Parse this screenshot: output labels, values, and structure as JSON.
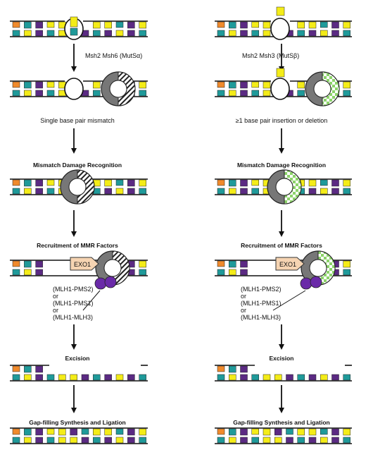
{
  "colors": {
    "teal": "#1f9a9a",
    "yellow": "#f4ec18",
    "purple": "#5b2a83",
    "orange": "#f08a2c",
    "strand": "#111111",
    "clamp_grey": "#777777",
    "exo_fill": "#f6d4b2",
    "mlh_purple": "#6a2aa8",
    "mutsb_green": "#8dd36b"
  },
  "left_column": {
    "protein_label": "Msh2 Msh6 (MutSα)",
    "lesion_label": "Single base pair mismatch",
    "step_recognition": "Mismatch Damage Recognition",
    "step_recruitment": "Recruitment of MMR Factors",
    "exo_label": "EXO1",
    "mlh_complexes": [
      "(MLH1-PMS2)",
      "or",
      "(MLH1-PMS1)",
      "or",
      "(MLH1-MLH3)"
    ],
    "step_excision": "Excision",
    "step_gapfill": "Gap-filling Synthesis and Ligation"
  },
  "right_column": {
    "protein_label": "Msh2 Msh3 (MutSβ)",
    "lesion_label": "≥1 base pair insertion or deletion",
    "step_recognition": "Mismatch Damage Recognition",
    "step_recruitment": "Recruitment of MMR Factors",
    "exo_label": "EXO1",
    "mlh_complexes": [
      "(MLH1-PMS2)",
      "or",
      "(MLH1-PMS1)",
      "or",
      "(MLH1-MLH3)"
    ],
    "step_excision": "Excision",
    "step_gapfill": "Gap-filling Synthesis and Ligation"
  },
  "clamp_pattern": {
    "left": "diagonal-stripes",
    "right": "green-checkerboard"
  }
}
